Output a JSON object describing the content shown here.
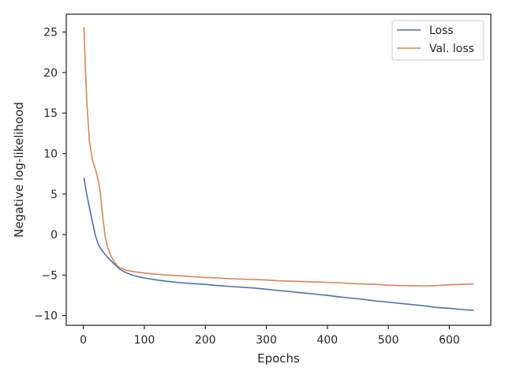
{
  "chart_data": {
    "type": "line",
    "title": "",
    "xlabel": "Epochs",
    "ylabel": "Negative log-likelihood",
    "xlim": [
      -28,
      668
    ],
    "ylim": [
      -11.2,
      27.2
    ],
    "xticks": [
      0,
      100,
      200,
      300,
      400,
      500,
      600
    ],
    "yticks": [
      -10,
      -5,
      0,
      5,
      10,
      15,
      20,
      25
    ],
    "grid": false,
    "legend_position": "top-right",
    "series": [
      {
        "name": "Loss",
        "color": "#4c72b0",
        "x": [
          1,
          5,
          10,
          15,
          20,
          25,
          30,
          35,
          40,
          50,
          60,
          70,
          80,
          90,
          100,
          120,
          140,
          160,
          180,
          200,
          220,
          240,
          260,
          280,
          300,
          320,
          340,
          360,
          380,
          400,
          420,
          440,
          460,
          480,
          500,
          520,
          540,
          560,
          580,
          600,
          620,
          640
        ],
        "y": [
          7.0,
          5.2,
          3.3,
          1.5,
          -0.2,
          -1.3,
          -1.9,
          -2.4,
          -2.8,
          -3.6,
          -4.3,
          -4.7,
          -5.0,
          -5.2,
          -5.35,
          -5.6,
          -5.8,
          -5.95,
          -6.05,
          -6.15,
          -6.3,
          -6.4,
          -6.5,
          -6.6,
          -6.75,
          -6.9,
          -7.05,
          -7.2,
          -7.35,
          -7.5,
          -7.7,
          -7.85,
          -8.0,
          -8.2,
          -8.35,
          -8.5,
          -8.65,
          -8.8,
          -9.0,
          -9.1,
          -9.25,
          -9.35
        ]
      },
      {
        "name": "Val. loss",
        "color": "#dd8452",
        "x": [
          1,
          3,
          6,
          10,
          15,
          20,
          25,
          28,
          32,
          36,
          40,
          45,
          50,
          55,
          60,
          70,
          80,
          90,
          100,
          120,
          140,
          160,
          180,
          200,
          220,
          240,
          260,
          280,
          300,
          320,
          340,
          360,
          380,
          400,
          420,
          440,
          460,
          480,
          500,
          520,
          540,
          560,
          580,
          600,
          620,
          640
        ],
        "y": [
          25.6,
          21.0,
          16.0,
          11.5,
          9.2,
          8.0,
          6.5,
          5.0,
          2.0,
          -0.3,
          -1.6,
          -2.6,
          -3.3,
          -3.8,
          -4.1,
          -4.4,
          -4.55,
          -4.65,
          -4.75,
          -4.9,
          -5.0,
          -5.1,
          -5.2,
          -5.3,
          -5.35,
          -5.45,
          -5.5,
          -5.55,
          -5.6,
          -5.7,
          -5.75,
          -5.8,
          -5.85,
          -5.9,
          -5.95,
          -6.05,
          -6.1,
          -6.15,
          -6.25,
          -6.3,
          -6.3,
          -6.35,
          -6.3,
          -6.2,
          -6.15,
          -6.1
        ]
      }
    ]
  }
}
